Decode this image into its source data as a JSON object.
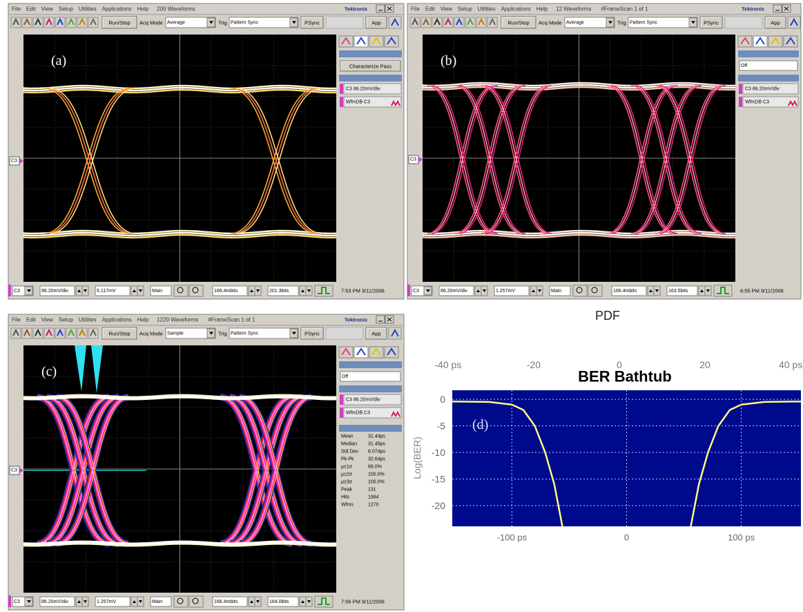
{
  "panels": [
    {
      "menu": [
        "File",
        "Edit",
        "View",
        "Setup",
        "Utilities",
        "Applications",
        "Help"
      ],
      "acquisition": "200 Waveforms",
      "brand": "Tektronix",
      "toolbar": {
        "run_stop": "Run/Stop",
        "acq_label": "Acq Mode",
        "acq_mode": "Average",
        "trig_label": "Trig",
        "trigger": "Pattern Sync",
        "psync": "PSync",
        "app": "App"
      },
      "label": "(a)",
      "channel": "C3",
      "side": [
        "Characterize Pass",
        "C3 86.20mV/div",
        "WfmDB C3"
      ],
      "bottom": [
        "86.20mV/div",
        "5.117mV",
        "Main",
        "166.4mbits",
        "201.3bits"
      ],
      "time": "7:53 PM 9/11/2006"
    },
    {
      "menu": [
        "File",
        "Edit",
        "View",
        "Setup",
        "Utilities",
        "Applications",
        "Help"
      ],
      "acquisition": "12 Waveforms",
      "frame": "#FrameScan 1 of 1",
      "brand": "Tektronix",
      "toolbar": {
        "run_stop": "Run/Stop",
        "acq_label": "Acq Mode",
        "acq_mode": "Average",
        "trig_label": "Trig",
        "trigger": "Pattern Sync",
        "psync": "PSync",
        "app": "App"
      },
      "label": "(b)",
      "channel": "C3",
      "side": [
        "Off",
        "C3 86.20mV/div",
        "WfmDB C3"
      ],
      "bottom": [
        "86.20mV/div",
        "1.257mV",
        "Main",
        "166.4mbits",
        "163.5bits"
      ],
      "time": "6:55 PM 9/11/2006"
    },
    {
      "menu": [
        "File",
        "Edit",
        "View",
        "Setup",
        "Utilities",
        "Applications",
        "Help"
      ],
      "acquisition": "1220 Waveforms",
      "frame": "#FrameScan 1 of 1",
      "brand": "Tektronix",
      "toolbar": {
        "run_stop": "Run/Stop",
        "acq_label": "Acq Mode",
        "acq_mode": "Sample",
        "trig_label": "Trig",
        "trigger": "Pattern Sync",
        "psync": "PSync",
        "app": "App"
      },
      "label": "(c)",
      "channel": "C3",
      "side": [
        "Off",
        "C3 86.20mV/div",
        "WfmDB C3"
      ],
      "stats": [
        [
          "Mean",
          "31.44ps"
        ],
        [
          "Median",
          "31.45ps"
        ],
        [
          "Std Dev",
          "8.074ps"
        ],
        [
          "Pk-Pk",
          "32.64ps"
        ],
        [
          "μ±1σ",
          "68.0%"
        ],
        [
          "μ±2σ",
          "100.0%"
        ],
        [
          "μ±3σ",
          "100.0%"
        ],
        [
          "Peak",
          "131"
        ],
        [
          "Hits",
          "1984"
        ],
        [
          "Wfms",
          "1270"
        ]
      ],
      "bottom": [
        "86.20mV/div",
        "1.257mV",
        "Main",
        "166.4mbits",
        "164.0bits"
      ],
      "time": "7:06 PM 9/11/2006"
    }
  ],
  "bathtub": {
    "type": "line",
    "caption": "PDF",
    "title": "BER Bathtub",
    "label": "(d)",
    "y_label": "Log(BER)",
    "background": "#000a8c",
    "grid": true,
    "xlim": [
      -152,
      152
    ],
    "ylim": [
      -23.9,
      1.7
    ],
    "xticks": [
      {
        "value": -100,
        "label": "-100 ps"
      },
      0,
      {
        "value": 100,
        "label": "100 ps"
      }
    ],
    "yticks": [
      0,
      -5,
      -10,
      -15,
      -20
    ],
    "x2lim": [
      -39,
      42.4
    ],
    "x2ticks": [
      {
        "value": -40,
        "label": "-40 ps"
      },
      -20,
      0,
      20,
      {
        "value": 40,
        "label": "40 ps"
      }
    ],
    "series": [
      {
        "color": "#ffff80",
        "x": [
          -152,
          -120,
          -100,
          -90,
          -80,
          -71,
          -63,
          -56
        ],
        "values": [
          -0.4,
          -0.5,
          -1,
          -2,
          -5,
          -10,
          -16,
          -23.9
        ]
      },
      {
        "color": "#ffff80",
        "x": [
          56,
          63,
          71,
          80,
          90,
          100,
          120,
          152
        ],
        "values": [
          -23.9,
          -16,
          -10,
          -5,
          -2,
          -1,
          -0.5,
          -0.4
        ]
      }
    ]
  }
}
